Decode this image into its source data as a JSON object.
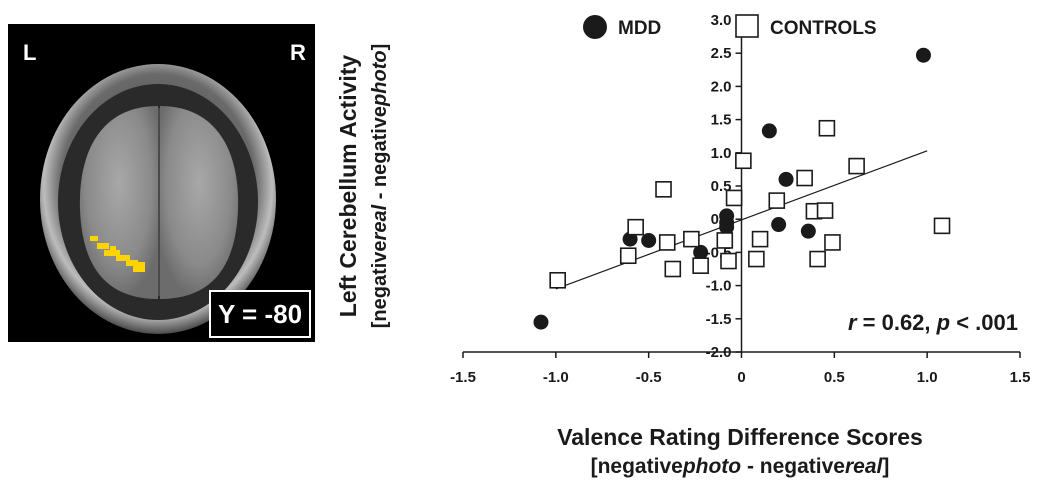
{
  "brain_image": {
    "left_label": "L",
    "right_label": "R",
    "slice_label": "Y = -80",
    "activation_color": "#ffd400"
  },
  "chart_data": {
    "type": "scatter",
    "xlabel": "Valence Rating Difference Scores",
    "xlabel_sub": {
      "prefix": "[negative",
      "part1": "photo",
      "middle": " - negative",
      "part2": "real",
      "suffix": "]"
    },
    "ylabel": "Left Cerebellum Activity",
    "ylabel_sub": {
      "prefix": "[negative",
      "part1": "real",
      "middle": " - negative",
      "part2": "photo",
      "suffix": "]"
    },
    "xlim": [
      -1.5,
      1.5
    ],
    "ylim": [
      -2.0,
      3.0
    ],
    "x_ticks": [
      "-1.5",
      "-1.0",
      "-0.5",
      "0",
      "0.5",
      "1.0",
      "1.5"
    ],
    "y_ticks": [
      "3.0",
      "2.5",
      "2.0",
      "1.5",
      "1.0",
      "0.5",
      "0.0",
      "-0.5",
      "-1.0",
      "-1.5",
      "-2.0"
    ],
    "legend_position": "top",
    "annotation": {
      "r_sym": "r",
      "r_val": " = 0.62, ",
      "p_sym": "p",
      "p_val": " < .001"
    },
    "series": [
      {
        "name": "MDD",
        "marker": "filled-circle",
        "color": "#1a1a1a",
        "points": [
          {
            "x": -1.08,
            "y": -1.55
          },
          {
            "x": -0.6,
            "y": -0.3
          },
          {
            "x": -0.5,
            "y": -0.32
          },
          {
            "x": -0.22,
            "y": -0.5
          },
          {
            "x": -0.08,
            "y": 0.05
          },
          {
            "x": -0.08,
            "y": -0.05
          },
          {
            "x": -0.08,
            "y": -0.12
          },
          {
            "x": 0.15,
            "y": 1.33
          },
          {
            "x": 0.2,
            "y": -0.08
          },
          {
            "x": 0.24,
            "y": 0.6
          },
          {
            "x": 0.36,
            "y": -0.18
          },
          {
            "x": 0.98,
            "y": 2.47
          }
        ]
      },
      {
        "name": "CONTROLS",
        "marker": "open-square",
        "color": "#1a1a1a",
        "points": [
          {
            "x": -0.99,
            "y": -0.92
          },
          {
            "x": -0.61,
            "y": -0.55
          },
          {
            "x": -0.57,
            "y": -0.12
          },
          {
            "x": -0.42,
            "y": 0.45
          },
          {
            "x": -0.4,
            "y": -0.35
          },
          {
            "x": -0.37,
            "y": -0.75
          },
          {
            "x": -0.27,
            "y": -0.3
          },
          {
            "x": -0.22,
            "y": -0.7
          },
          {
            "x": -0.09,
            "y": -0.32
          },
          {
            "x": -0.07,
            "y": -0.63
          },
          {
            "x": -0.04,
            "y": 0.32
          },
          {
            "x": 0.01,
            "y": 0.88
          },
          {
            "x": 0.08,
            "y": -0.6
          },
          {
            "x": 0.1,
            "y": -0.3
          },
          {
            "x": 0.19,
            "y": 0.28
          },
          {
            "x": 0.34,
            "y": 0.62
          },
          {
            "x": 0.39,
            "y": 0.12
          },
          {
            "x": 0.41,
            "y": -0.6
          },
          {
            "x": 0.45,
            "y": 0.13
          },
          {
            "x": 0.46,
            "y": 1.37
          },
          {
            "x": 0.49,
            "y": -0.35
          },
          {
            "x": 0.62,
            "y": 0.8
          },
          {
            "x": 1.08,
            "y": -0.1
          }
        ]
      }
    ],
    "fit_line": {
      "x1": -1.0,
      "y1": -1.05,
      "x2": 1.0,
      "y2": 1.03
    }
  }
}
